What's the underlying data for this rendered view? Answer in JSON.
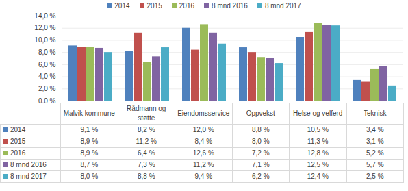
{
  "chart_data": {
    "type": "bar",
    "categories": [
      "Malvik kommune",
      "Rådmann og støtte",
      "Eiendomsservice",
      "Oppvekst",
      "Helse og velferd",
      "Teknisk"
    ],
    "series": [
      {
        "name": "2014",
        "color": "#4f81bd",
        "values": [
          9.1,
          8.2,
          12.0,
          8.8,
          10.5,
          3.4
        ],
        "value_labels": [
          "9,1 %",
          "8,2 %",
          "12,0 %",
          "8,8 %",
          "10,5 %",
          "3,4 %"
        ]
      },
      {
        "name": "2015",
        "color": "#c0504d",
        "values": [
          8.9,
          11.2,
          8.4,
          8.0,
          11.3,
          3.1
        ],
        "value_labels": [
          "8,9 %",
          "11,2 %",
          "8,4 %",
          "8,0 %",
          "11,3 %",
          "3,1 %"
        ]
      },
      {
        "name": "2016",
        "color": "#9bbb59",
        "values": [
          8.9,
          6.4,
          12.6,
          7.2,
          12.8,
          5.2
        ],
        "value_labels": [
          "8,9 %",
          "6,4 %",
          "12,6 %",
          "7,2 %",
          "12,8 %",
          "5,2 %"
        ]
      },
      {
        "name": "8 mnd 2016",
        "color": "#8064a2",
        "values": [
          8.7,
          7.3,
          11.2,
          7.1,
          12.5,
          5.7
        ],
        "value_labels": [
          "8,7 %",
          "7,3 %",
          "11,2 %",
          "7,1 %",
          "12,5 %",
          "5,7 %"
        ]
      },
      {
        "name": "8 mnd 2017",
        "color": "#4bacc6",
        "values": [
          8.0,
          8.8,
          9.4,
          6.2,
          12.4,
          2.5
        ],
        "value_labels": [
          "8,0 %",
          "8,8 %",
          "9,4 %",
          "6,2 %",
          "12,4 %",
          "2,5 %"
        ]
      }
    ],
    "ylim": [
      0,
      14
    ],
    "yticks": [
      {
        "value": 0,
        "label": "0,0 %"
      },
      {
        "value": 2,
        "label": "2,0 %"
      },
      {
        "value": 4,
        "label": "4,0 %"
      },
      {
        "value": 6,
        "label": "6,0 %"
      },
      {
        "value": 8,
        "label": "8,0 %"
      },
      {
        "value": 10,
        "label": "10,0 %"
      },
      {
        "value": 12,
        "label": "12,0 %"
      },
      {
        "value": 14,
        "label": "14,0 %"
      }
    ],
    "grid": true,
    "legend": "top"
  }
}
